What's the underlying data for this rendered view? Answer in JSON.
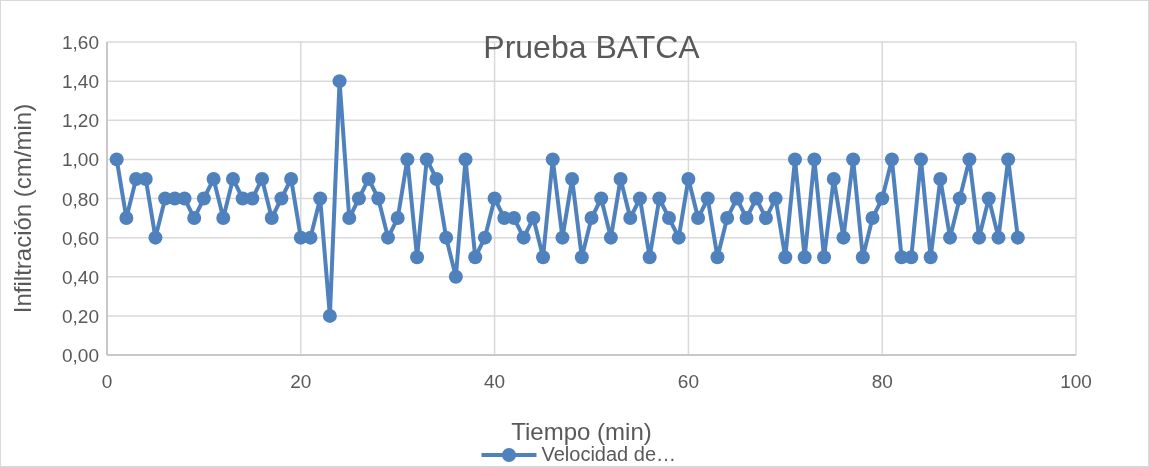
{
  "chart_data": {
    "type": "line",
    "title": "Prueba BATCA",
    "xlabel": "Tiempo (min)",
    "ylabel": "Infiltración (cm/min)",
    "x": [
      1,
      2,
      3,
      4,
      5,
      6,
      7,
      8,
      9,
      10,
      11,
      12,
      13,
      14,
      15,
      16,
      17,
      18,
      19,
      20,
      21,
      22,
      23,
      24,
      25,
      26,
      27,
      28,
      29,
      30,
      31,
      32,
      33,
      34,
      35,
      36,
      37,
      38,
      39,
      40,
      41,
      42,
      43,
      44,
      45,
      46,
      47,
      48,
      49,
      50,
      51,
      52,
      53,
      54,
      55,
      56,
      57,
      58,
      59,
      60,
      61,
      62,
      63,
      64,
      65,
      66,
      67,
      68,
      69,
      70,
      71,
      72,
      73,
      74,
      75,
      76,
      77,
      78,
      79,
      80,
      81,
      82,
      83,
      84,
      85,
      86,
      87,
      88,
      89,
      90,
      91,
      92,
      93,
      94
    ],
    "series": [
      {
        "name": "Velocidad de…",
        "color": "#4f81bd",
        "values": [
          1.0,
          0.7,
          0.9,
          0.9,
          0.6,
          0.8,
          0.8,
          0.8,
          0.7,
          0.8,
          0.9,
          0.7,
          0.9,
          0.8,
          0.8,
          0.9,
          0.7,
          0.8,
          0.9,
          0.6,
          0.6,
          0.8,
          0.2,
          1.4,
          0.7,
          0.8,
          0.9,
          0.8,
          0.6,
          0.7,
          1.0,
          0.5,
          1.0,
          0.9,
          0.6,
          0.4,
          1.0,
          0.5,
          0.6,
          0.8,
          0.7,
          0.7,
          0.6,
          0.7,
          0.5,
          1.0,
          0.6,
          0.9,
          0.5,
          0.7,
          0.8,
          0.6,
          0.9,
          0.7,
          0.8,
          0.5,
          0.8,
          0.7,
          0.6,
          0.9,
          0.7,
          0.8,
          0.5,
          0.7,
          0.8,
          0.7,
          0.8,
          0.7,
          0.8,
          0.5,
          1.0,
          0.5,
          1.0,
          0.5,
          0.9,
          0.6,
          1.0,
          0.5,
          0.7,
          0.8,
          1.0,
          0.5,
          0.5,
          1.0,
          0.5,
          0.9,
          0.6,
          0.8,
          1.0,
          0.6,
          0.8,
          0.6,
          1.0,
          0.6
        ]
      }
    ],
    "xlim": [
      0,
      100
    ],
    "xticks": [
      0,
      20,
      40,
      60,
      80,
      100
    ],
    "ylim": [
      0,
      1.6
    ],
    "yticks": [
      {
        "value": 0,
        "label": "0,00"
      },
      {
        "value": 0.2,
        "label": "0,20"
      },
      {
        "value": 0.4,
        "label": "0,40"
      },
      {
        "value": 0.6,
        "label": "0,60"
      },
      {
        "value": 0.8,
        "label": "0,80"
      },
      {
        "value": 1.0,
        "label": "1,00"
      },
      {
        "value": 1.2,
        "label": "1,20"
      },
      {
        "value": 1.4,
        "label": "1,40"
      },
      {
        "value": 1.6,
        "label": "1,60"
      }
    ],
    "grid": true,
    "legend": "bottom",
    "marker": "circle",
    "line_style": "solid"
  }
}
